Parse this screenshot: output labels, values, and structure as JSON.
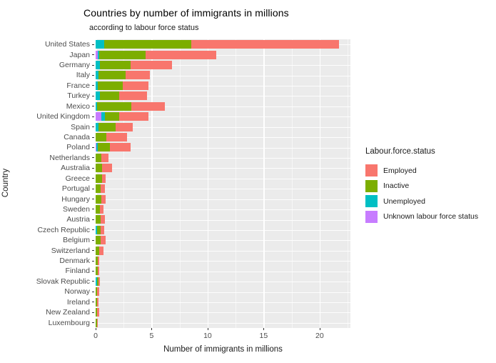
{
  "title": "Countries by number of immigrants in millions",
  "subtitle": "according to labour force status",
  "axes": {
    "x_label": "Number of immigrants in millions",
    "y_label": "Country",
    "x_ticks": [
      0,
      5,
      10,
      15,
      20
    ],
    "x_minor_ticks": [
      2.5,
      7.5,
      12.5,
      17.5,
      22.5
    ],
    "x_max": 22.75,
    "grid": true
  },
  "legend": {
    "title": "Labour.force.status",
    "position": "right",
    "items": [
      {
        "label": "Employed",
        "color": "#F8766D"
      },
      {
        "label": "Inactive",
        "color": "#7CAE00"
      },
      {
        "label": "Unemployed",
        "color": "#00BFC4"
      },
      {
        "label": "Unknown labour force status",
        "color": "#C77CFF"
      }
    ]
  },
  "colors": {
    "panel_background": "#EBEBEB",
    "gridline": "#FFFFFF",
    "tick_text": "#4D4D4D",
    "axis_title_text": "#1A1A1A"
  },
  "chart_data": {
    "type": "bar",
    "orientation": "horizontal",
    "stacked": true,
    "stack_order_left_to_right": [
      "Unknown labour force status",
      "Unemployed",
      "Inactive",
      "Employed"
    ],
    "title": "Countries by number of immigrants in millions",
    "subtitle": "according to labour force status",
    "xlabel": "Number of immigrants in millions",
    "ylabel": "Country",
    "xlim": [
      0,
      22.75
    ],
    "categories": [
      "United States",
      "Japan",
      "Germany",
      "Italy",
      "France",
      "Turkey",
      "Mexico",
      "United Kingdom",
      "Spain",
      "Canada",
      "Poland",
      "Netherlands",
      "Australia",
      "Greece",
      "Portugal",
      "Hungary",
      "Sweden",
      "Austria",
      "Czech Republic",
      "Belgium",
      "Switzerland",
      "Denmark",
      "Finland",
      "Slovak Republic",
      "Norway",
      "Ireland",
      "New Zealand",
      "Luxembourg"
    ],
    "series": [
      {
        "name": "Employed",
        "color": "#F8766D",
        "values": [
          13.2,
          6.3,
          3.7,
          2.2,
          2.25,
          2.5,
          3.0,
          2.6,
          1.5,
          1.85,
          1.8,
          0.65,
          0.85,
          0.35,
          0.4,
          0.4,
          0.3,
          0.35,
          0.3,
          0.45,
          0.35,
          0.15,
          0.15,
          0.15,
          0.15,
          0.1,
          0.2,
          0.05
        ]
      },
      {
        "name": "Inactive",
        "color": "#7CAE00",
        "values": [
          7.8,
          4.1,
          2.7,
          2.4,
          2.25,
          1.7,
          3.1,
          1.3,
          1.55,
          0.95,
          1.1,
          0.5,
          0.6,
          0.55,
          0.45,
          0.5,
          0.4,
          0.45,
          0.35,
          0.45,
          0.35,
          0.2,
          0.2,
          0.15,
          0.15,
          0.15,
          0.15,
          0.1
        ]
      },
      {
        "name": "Unemployed",
        "color": "#00BFC4",
        "values": [
          0.75,
          0.15,
          0.4,
          0.25,
          0.2,
          0.4,
          0.1,
          0.3,
          0.25,
          0,
          0.15,
          0,
          0,
          0,
          0,
          0,
          0,
          0,
          0.1,
          0,
          0,
          0,
          0,
          0.1,
          0,
          0,
          0,
          0
        ]
      },
      {
        "name": "Unknown labour force status",
        "color": "#C77CFF",
        "values": [
          0,
          0.2,
          0,
          0,
          0,
          0,
          0,
          0.5,
          0,
          0,
          0.05,
          0,
          0,
          0,
          0,
          0,
          0,
          0,
          0,
          0,
          0,
          0,
          0,
          0,
          0,
          0,
          0,
          0
        ]
      }
    ]
  }
}
